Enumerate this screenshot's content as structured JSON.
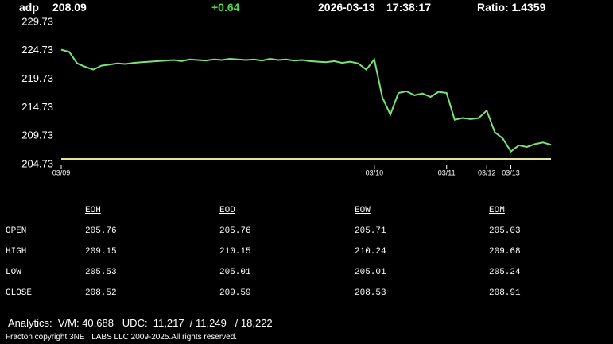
{
  "header": {
    "symbol": "adp",
    "price": "208.09",
    "change": "+0.64",
    "date": "2026-03-13",
    "time": "17:38:17",
    "ratio": "Ratio: 1.4359"
  },
  "chart_data": {
    "type": "line",
    "color": "#7ce07c",
    "reference_line": 205.7,
    "reference_color": "#e2e49a",
    "ylim": [
      204.73,
      229.73
    ],
    "yticks": [
      229.73,
      224.73,
      219.73,
      214.73,
      209.73,
      204.73
    ],
    "categories": [
      "03/09",
      null,
      null,
      null,
      null,
      null,
      null,
      null,
      null,
      null,
      null,
      null,
      null,
      null,
      null,
      null,
      null,
      null,
      null,
      null,
      null,
      null,
      null,
      null,
      null,
      null,
      null,
      null,
      null,
      null,
      null,
      null,
      null,
      null,
      null,
      null,
      null,
      null,
      null,
      "03/10",
      null,
      null,
      null,
      null,
      null,
      null,
      null,
      null,
      "03/11",
      null,
      null,
      null,
      null,
      "03/12",
      null,
      null,
      "03/13",
      null,
      null,
      null,
      null,
      null
    ],
    "values": [
      224.9,
      224.5,
      222.5,
      221.9,
      221.4,
      222.1,
      222.3,
      222.5,
      222.4,
      222.6,
      222.7,
      222.8,
      222.9,
      223.0,
      223.1,
      222.9,
      223.2,
      223.1,
      223.0,
      223.2,
      223.1,
      223.3,
      223.2,
      223.1,
      223.2,
      223.0,
      223.3,
      223.1,
      223.2,
      223.0,
      223.1,
      222.9,
      222.8,
      222.7,
      222.9,
      222.6,
      222.8,
      222.5,
      221.4,
      223.2,
      216.5,
      213.5,
      217.3,
      217.6,
      216.9,
      217.2,
      216.6,
      217.5,
      217.3,
      212.6,
      212.9,
      212.7,
      212.9,
      214.2,
      210.4,
      209.3,
      207.0,
      208.1,
      207.8,
      208.3,
      208.6,
      208.2
    ]
  },
  "table": {
    "columns": [
      "EOH",
      "EOD",
      "EOW",
      "EOM"
    ],
    "rows": [
      [
        "OPEN",
        "205.76",
        "205.76",
        "205.71",
        "205.03"
      ],
      [
        "HIGH",
        "209.15",
        "210.15",
        "210.24",
        "209.68"
      ],
      [
        "LOW",
        "205.53",
        "205.01",
        "205.01",
        "205.24"
      ],
      [
        "CLOSE",
        "208.52",
        "209.59",
        "208.53",
        "208.91"
      ]
    ]
  },
  "footer": {
    "analytics": "Analytics:  V/M: 40,688   UDC:  11,217  / 11,249   / 18,222",
    "copyright": "Fracton copyright 3NET LABS LLC 2009-2025.All rights reserved."
  }
}
